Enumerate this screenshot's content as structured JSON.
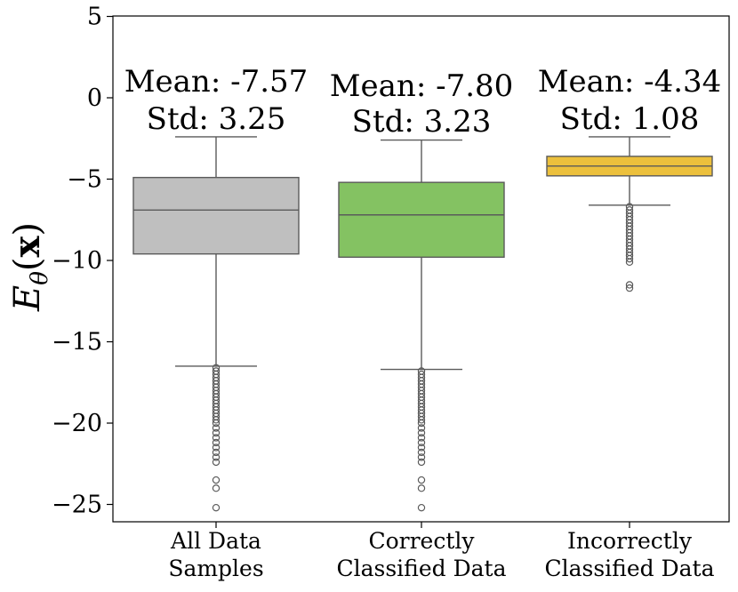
{
  "chart_data": {
    "type": "box",
    "title": "",
    "xlabel": "",
    "ylabel": "E_θ(x)",
    "ylabel_parts": {
      "main": "E",
      "subscript": "θ",
      "paren_open": "(",
      "arg": "x",
      "paren_close": ")"
    },
    "ylim": [
      -26,
      5
    ],
    "yticks": [
      5,
      0,
      -5,
      -10,
      -15,
      -20,
      -25
    ],
    "ytick_labels": [
      "5",
      "0",
      "−5",
      "−10",
      "−15",
      "−20",
      "−25"
    ],
    "grid": false,
    "legend": "none",
    "series": [
      {
        "name": "All Data Samples",
        "label_lines": [
          "All Data",
          "Samples"
        ],
        "color": "#bfbfbf",
        "whisker_high": -2.4,
        "q3": -4.9,
        "median": -6.9,
        "q1": -9.6,
        "whisker_low": -16.5,
        "mean_text": "Mean: -7.57",
        "std_text": "Std: 3.25",
        "outliers": [
          -16.6,
          -16.8,
          -17.0,
          -17.2,
          -17.4,
          -17.6,
          -17.8,
          -18.0,
          -18.2,
          -18.4,
          -18.6,
          -18.8,
          -19.0,
          -19.2,
          -19.4,
          -19.6,
          -19.8,
          -20.0,
          -20.3,
          -20.6,
          -20.9,
          -21.2,
          -21.5,
          -21.8,
          -22.1,
          -22.4,
          -23.5,
          -24.0,
          -25.2
        ]
      },
      {
        "name": "Correctly Classified Data",
        "label_lines": [
          "Correctly",
          "Classified Data"
        ],
        "color": "#84c262",
        "whisker_high": -2.6,
        "q3": -5.2,
        "median": -7.2,
        "q1": -9.8,
        "whisker_low": -16.7,
        "mean_text": "Mean: -7.80",
        "std_text": "Std: 3.23",
        "outliers": [
          -16.8,
          -17.0,
          -17.2,
          -17.4,
          -17.6,
          -17.8,
          -18.0,
          -18.2,
          -18.4,
          -18.6,
          -18.8,
          -19.0,
          -19.2,
          -19.4,
          -19.6,
          -19.8,
          -20.0,
          -20.3,
          -20.6,
          -20.9,
          -21.2,
          -21.5,
          -21.8,
          -22.1,
          -22.4,
          -23.5,
          -24.0,
          -25.2
        ]
      },
      {
        "name": "Incorrectly Classified Data",
        "label_lines": [
          "Incorrectly",
          "Classified Data"
        ],
        "color": "#ecc03c",
        "whisker_high": -2.4,
        "q3": -3.6,
        "median": -4.2,
        "q1": -4.8,
        "whisker_low": -6.6,
        "mean_text": "Mean: -4.34",
        "std_text": "Std: 1.08",
        "outliers": [
          -6.7,
          -6.9,
          -7.1,
          -7.3,
          -7.5,
          -7.7,
          -7.9,
          -8.1,
          -8.3,
          -8.5,
          -8.7,
          -8.9,
          -9.1,
          -9.3,
          -9.5,
          -9.7,
          -9.9,
          -10.1,
          -11.5,
          -11.7
        ]
      }
    ]
  }
}
